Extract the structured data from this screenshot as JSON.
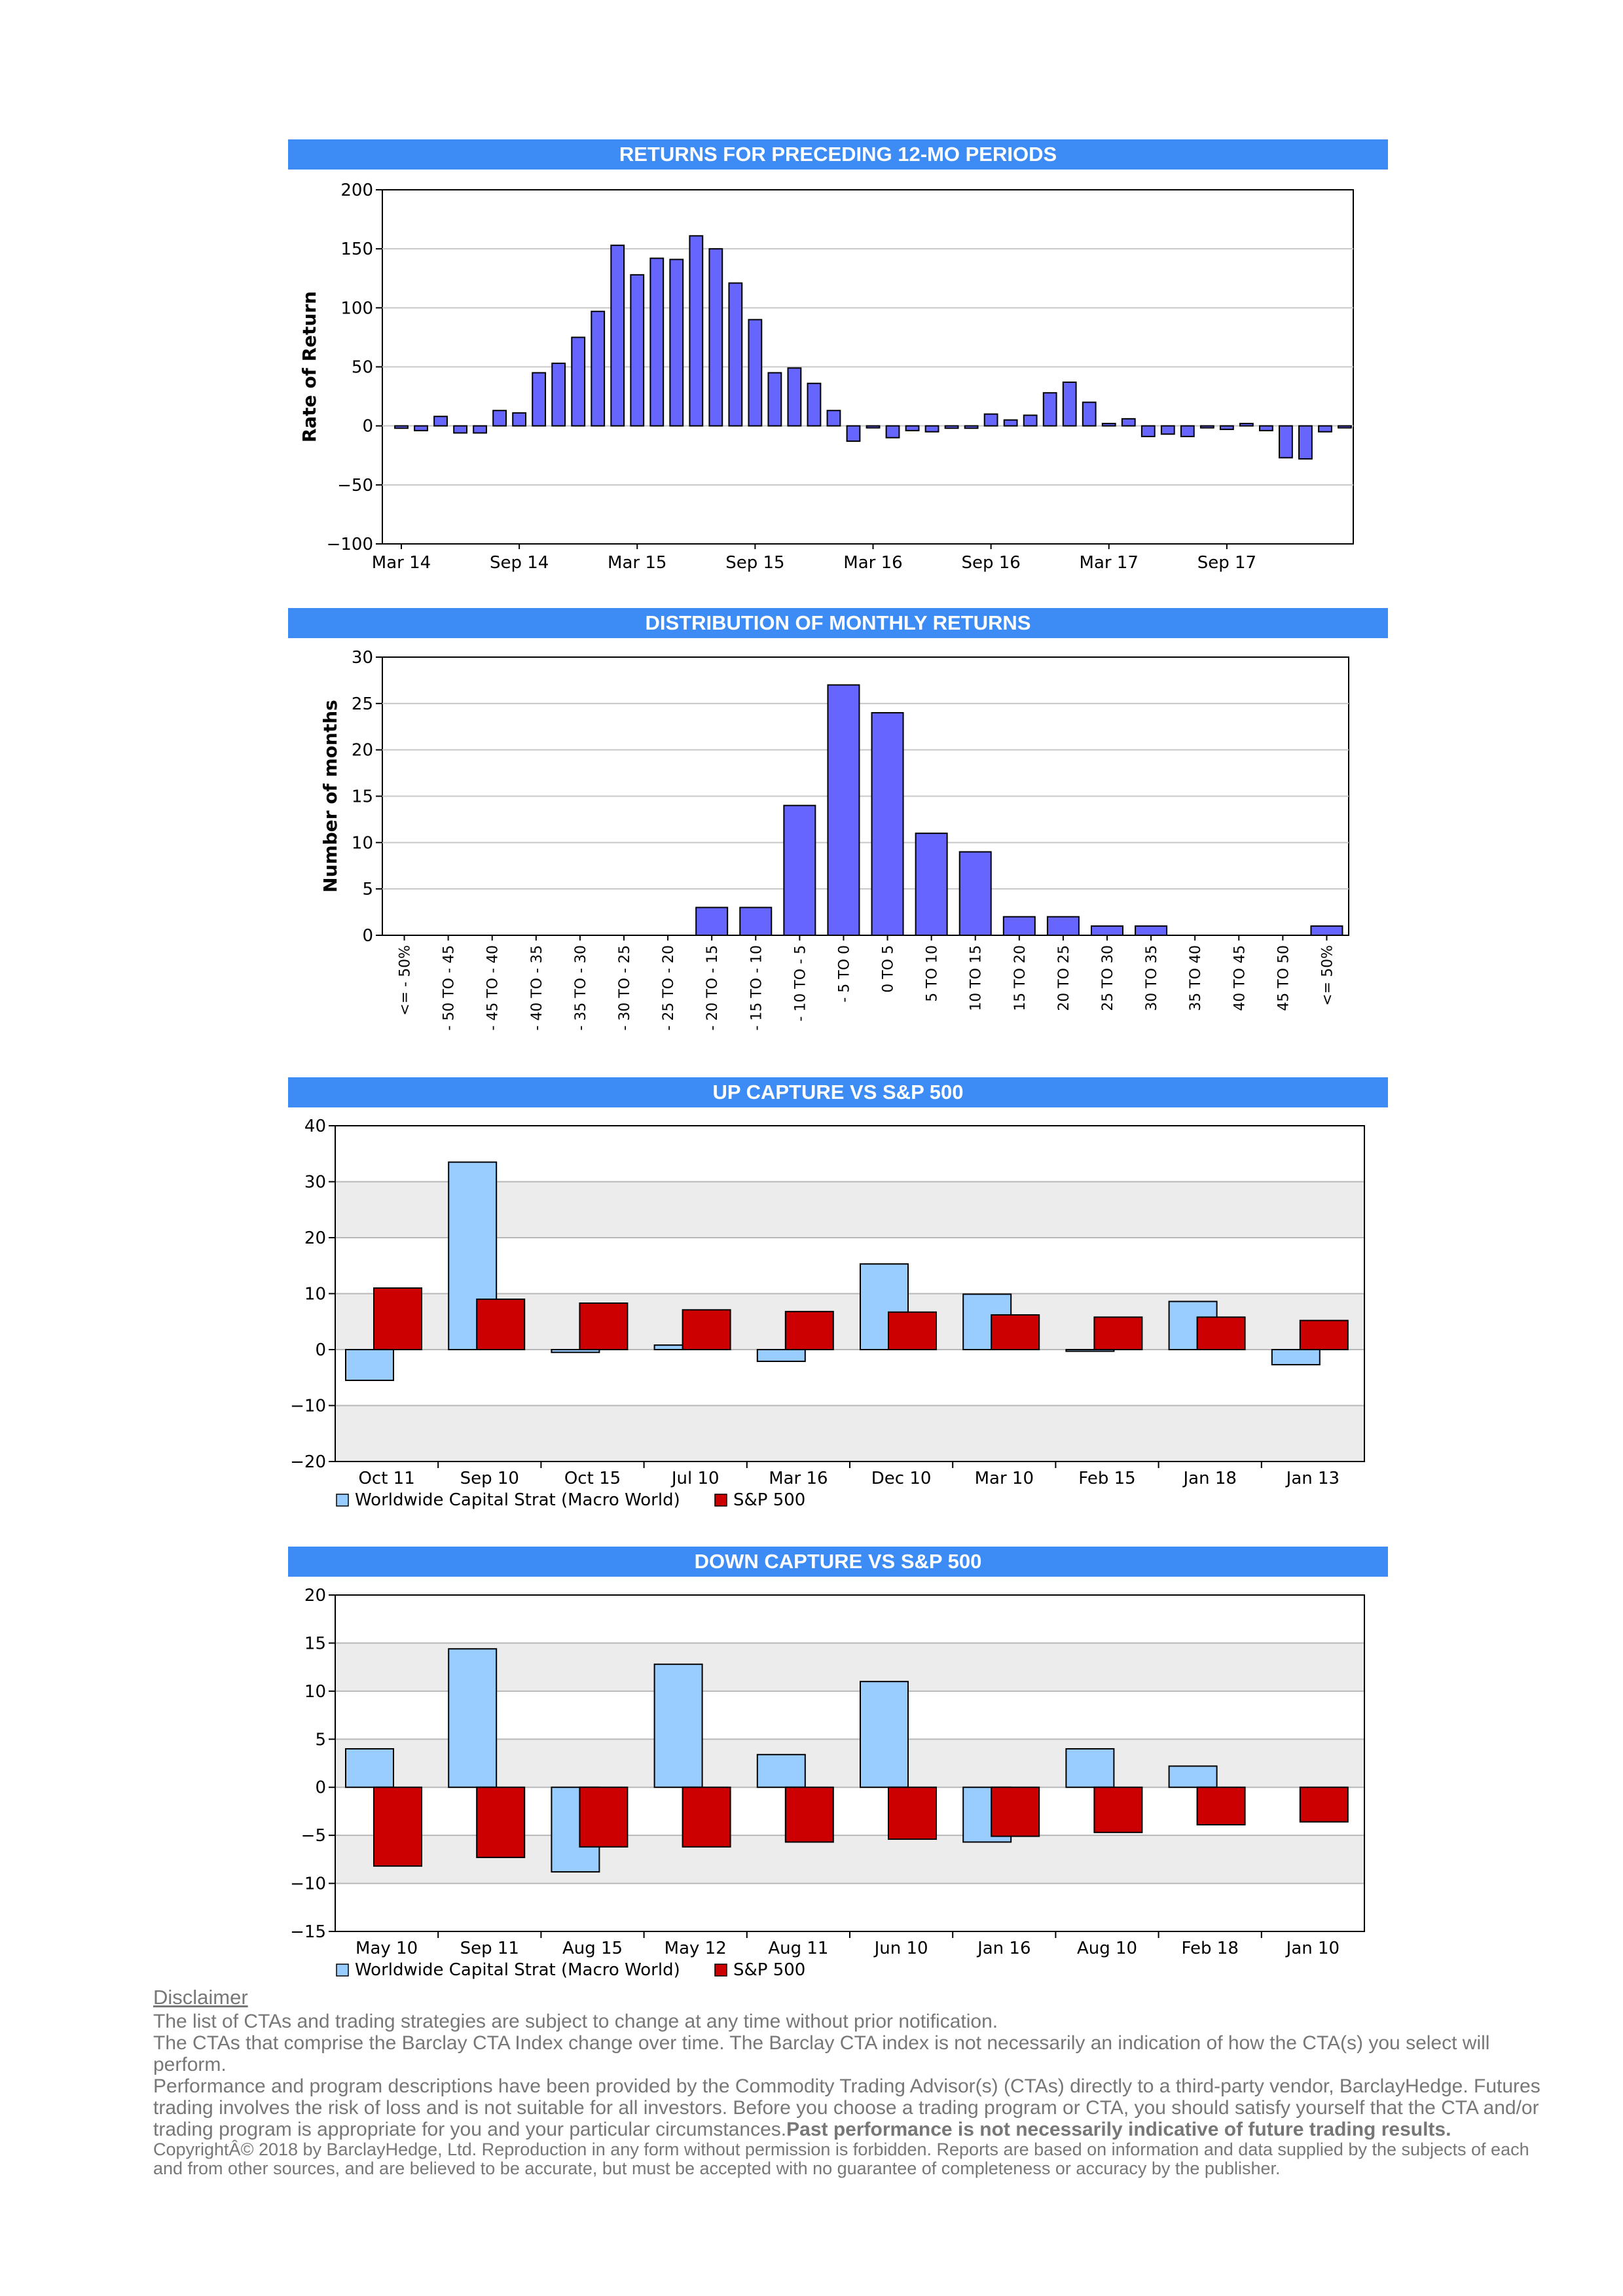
{
  "returns_chart": {
    "title": "RETURNS FOR PRECEDING 12-MO PERIODS",
    "ylabel": "Rate of Return",
    "bar_color": "#6666ff",
    "chart_data": {
      "type": "bar",
      "ylim": [
        -100,
        200
      ],
      "yticks": [
        "200",
        "150",
        "100",
        "50",
        "0",
        "−50",
        "−100"
      ],
      "x_tick_labels": [
        "Mar 14",
        "Sep 14",
        "Mar 15",
        "Sep 15",
        "Mar 16",
        "Sep 16",
        "Mar 17",
        "Sep 17"
      ],
      "x_tick_month_index": [
        0,
        6,
        12,
        18,
        24,
        30,
        36,
        42
      ],
      "values": [
        -2,
        -4,
        8,
        -6,
        -6,
        13,
        11,
        45,
        53,
        75,
        97,
        153,
        128,
        142,
        141,
        161,
        150,
        121,
        90,
        45,
        49,
        36,
        13,
        -13,
        -1,
        -10,
        -4,
        -5,
        -2,
        -2,
        10,
        5,
        9,
        28,
        37,
        20,
        2,
        6,
        -9,
        -7,
        -9,
        -1,
        -3,
        2,
        -4,
        -27,
        -28,
        -5,
        -1
      ]
    }
  },
  "distribution_chart": {
    "title": "DISTRIBUTION OF MONTHLY RETURNS",
    "ylabel": "Number of months",
    "bar_color": "#6666ff",
    "chart_data": {
      "type": "bar",
      "ylim": [
        0,
        30
      ],
      "yticks": [
        "30",
        "25",
        "20",
        "15",
        "10",
        "5",
        "0"
      ],
      "categories": [
        "<= - 50%",
        "- 50 TO - 45",
        "- 45 TO - 40",
        "- 40 TO - 35",
        "- 35 TO - 30",
        "- 30 TO - 25",
        "- 25 TO - 20",
        "- 20 TO - 15",
        "- 15 TO - 10",
        "- 10 TO - 5",
        "- 5 TO 0",
        "0 TO 5",
        "5 TO 10",
        "10 TO 15",
        "15 TO 20",
        "20 TO 25",
        "25 TO 30",
        "30 TO 35",
        "35 TO 40",
        "40 TO 45",
        "45 TO 50",
        "<= 50%"
      ],
      "values": [
        0,
        0,
        0,
        0,
        0,
        0,
        0,
        3,
        3,
        14,
        27,
        24,
        11,
        9,
        2,
        2,
        1,
        1,
        0,
        0,
        0,
        1
      ]
    }
  },
  "up_capture_chart": {
    "title": "UP CAPTURE VS S&P 500",
    "chart_data": {
      "type": "bar",
      "ylim": [
        -20,
        40
      ],
      "yticks": [
        "40",
        "30",
        "20",
        "10",
        "0",
        "−10",
        "−20"
      ],
      "categories": [
        "Oct 11",
        "Sep 10",
        "Oct 15",
        "Jul 10",
        "Mar 16",
        "Dec 10",
        "Mar 10",
        "Feb 15",
        "Jan 18",
        "Jan 13"
      ],
      "series": [
        {
          "name": "Worldwide Capital Strat (Macro World)",
          "color": "#99ccff",
          "values": [
            -5.5,
            33.5,
            -0.5,
            0.8,
            -2.1,
            15.3,
            9.9,
            -0.3,
            8.6,
            -2.7
          ]
        },
        {
          "name": "S&P 500",
          "color": "#cc0000",
          "values": [
            11.0,
            9.0,
            8.3,
            7.1,
            6.8,
            6.7,
            6.2,
            5.8,
            5.8,
            5.2
          ]
        }
      ]
    }
  },
  "down_capture_chart": {
    "title": "DOWN CAPTURE VS S&P 500",
    "chart_data": {
      "type": "bar",
      "ylim": [
        -15,
        20
      ],
      "yticks": [
        "20",
        "15",
        "10",
        "5",
        "0",
        "−5",
        "−10",
        "−15"
      ],
      "categories": [
        "May 10",
        "Sep 11",
        "Aug 15",
        "May 12",
        "Aug 11",
        "Jun 10",
        "Jan 16",
        "Aug 10",
        "Feb 18",
        "Jan 10"
      ],
      "series": [
        {
          "name": "Worldwide Capital Strat (Macro World)",
          "color": "#99ccff",
          "values": [
            4.0,
            14.4,
            -8.8,
            12.8,
            3.4,
            11.0,
            -5.7,
            4.0,
            2.2,
            0.0
          ]
        },
        {
          "name": "S&P 500",
          "color": "#cc0000",
          "values": [
            -8.2,
            -7.3,
            -6.2,
            -6.2,
            -5.7,
            -5.4,
            -5.1,
            -4.7,
            -3.9,
            -3.6
          ]
        }
      ]
    }
  },
  "disclaimer": {
    "heading": "Disclaimer",
    "line1": "The list of CTAs and trading strategies are subject to change at any time without prior notification.",
    "line2": "The CTAs that comprise the Barclay CTA Index change over time.  The Barclay CTA index is not necessarily an indication of how the CTA(s) you select will perform.",
    "line3": "Performance and program descriptions have been provided by the Commodity Trading Advisor(s) (CTAs) directly to a third-party vendor, BarclayHedge. Futures trading involves the risk of loss and is not suitable for all investors.  Before you choose a trading program or CTA, you should satisfy yourself that the CTA and/or trading program is appropriate for you and your particular circumstances.",
    "line3_bold": "Past performance is not necessarily indicative of future trading results.",
    "copyright": "CopyrightÂ©  2018 by BarclayHedge, Ltd. Reproduction in any form without permission is forbidden. Reports are based on information and data supplied by the subjects of each and from other sources, and are believed to be accurate, but must be accepted with no guarantee of completeness or accuracy by the publisher."
  }
}
